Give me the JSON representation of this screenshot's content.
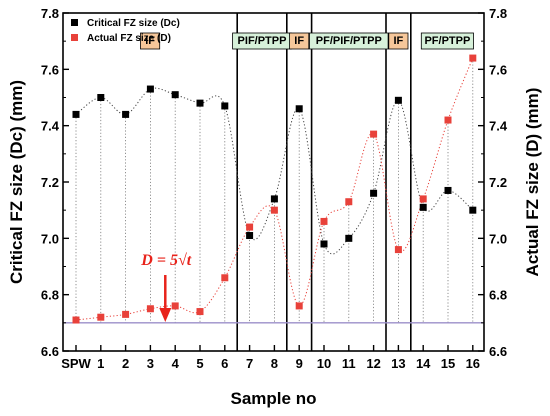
{
  "chart_data": {
    "type": "scatter",
    "xlabel": "Sample no",
    "ylabel_left": "Critical FZ size (Dc) (mm)",
    "ylabel_right": "Actual FZ size (D) (mm)",
    "ylim": [
      6.6,
      7.8
    ],
    "yticks": [
      6.6,
      6.8,
      7.0,
      7.2,
      7.4,
      7.6,
      7.8
    ],
    "categories": [
      "SPW",
      "1",
      "2",
      "3",
      "4",
      "5",
      "6",
      "7",
      "8",
      "9",
      "10",
      "11",
      "12",
      "13",
      "14",
      "15",
      "16"
    ],
    "series": [
      {
        "name": "Critical FZ size (Dc)",
        "color": "#000000",
        "marker": "square",
        "values": [
          7.44,
          7.5,
          7.44,
          7.53,
          7.51,
          7.48,
          7.47,
          7.01,
          7.14,
          7.46,
          6.98,
          7.0,
          7.16,
          7.49,
          7.11,
          7.17,
          7.1
        ]
      },
      {
        "name": "Actual FZ size (D)",
        "color": "#e8413a",
        "marker": "square",
        "values": [
          6.71,
          6.72,
          6.73,
          6.75,
          6.76,
          6.74,
          6.86,
          7.04,
          7.1,
          6.76,
          7.06,
          7.13,
          7.37,
          6.96,
          7.14,
          7.42,
          7.64
        ]
      }
    ],
    "reference_line": {
      "y": 6.7,
      "color": "#9b8fc9"
    },
    "regions": [
      {
        "label": "IF",
        "from_index": 0,
        "to_index": 6,
        "style": "orange"
      },
      {
        "label": "PIF/PTPP",
        "from_index": 7,
        "to_index": 8,
        "style": "green"
      },
      {
        "label": "IF",
        "from_index": 9,
        "to_index": 9,
        "style": "orange"
      },
      {
        "label": "PF/PIF/PTPP",
        "from_index": 10,
        "to_index": 12,
        "style": "green"
      },
      {
        "label": "IF",
        "from_index": 13,
        "to_index": 13,
        "style": "orange"
      },
      {
        "label": "PF/PTPP",
        "from_index": 14,
        "to_index": 16,
        "style": "green"
      }
    ],
    "annotation": {
      "text": "D = 5√t",
      "color": "#e8231b",
      "arrow_category_index": 3.6
    },
    "legend_position": "top-left",
    "grid": false
  }
}
